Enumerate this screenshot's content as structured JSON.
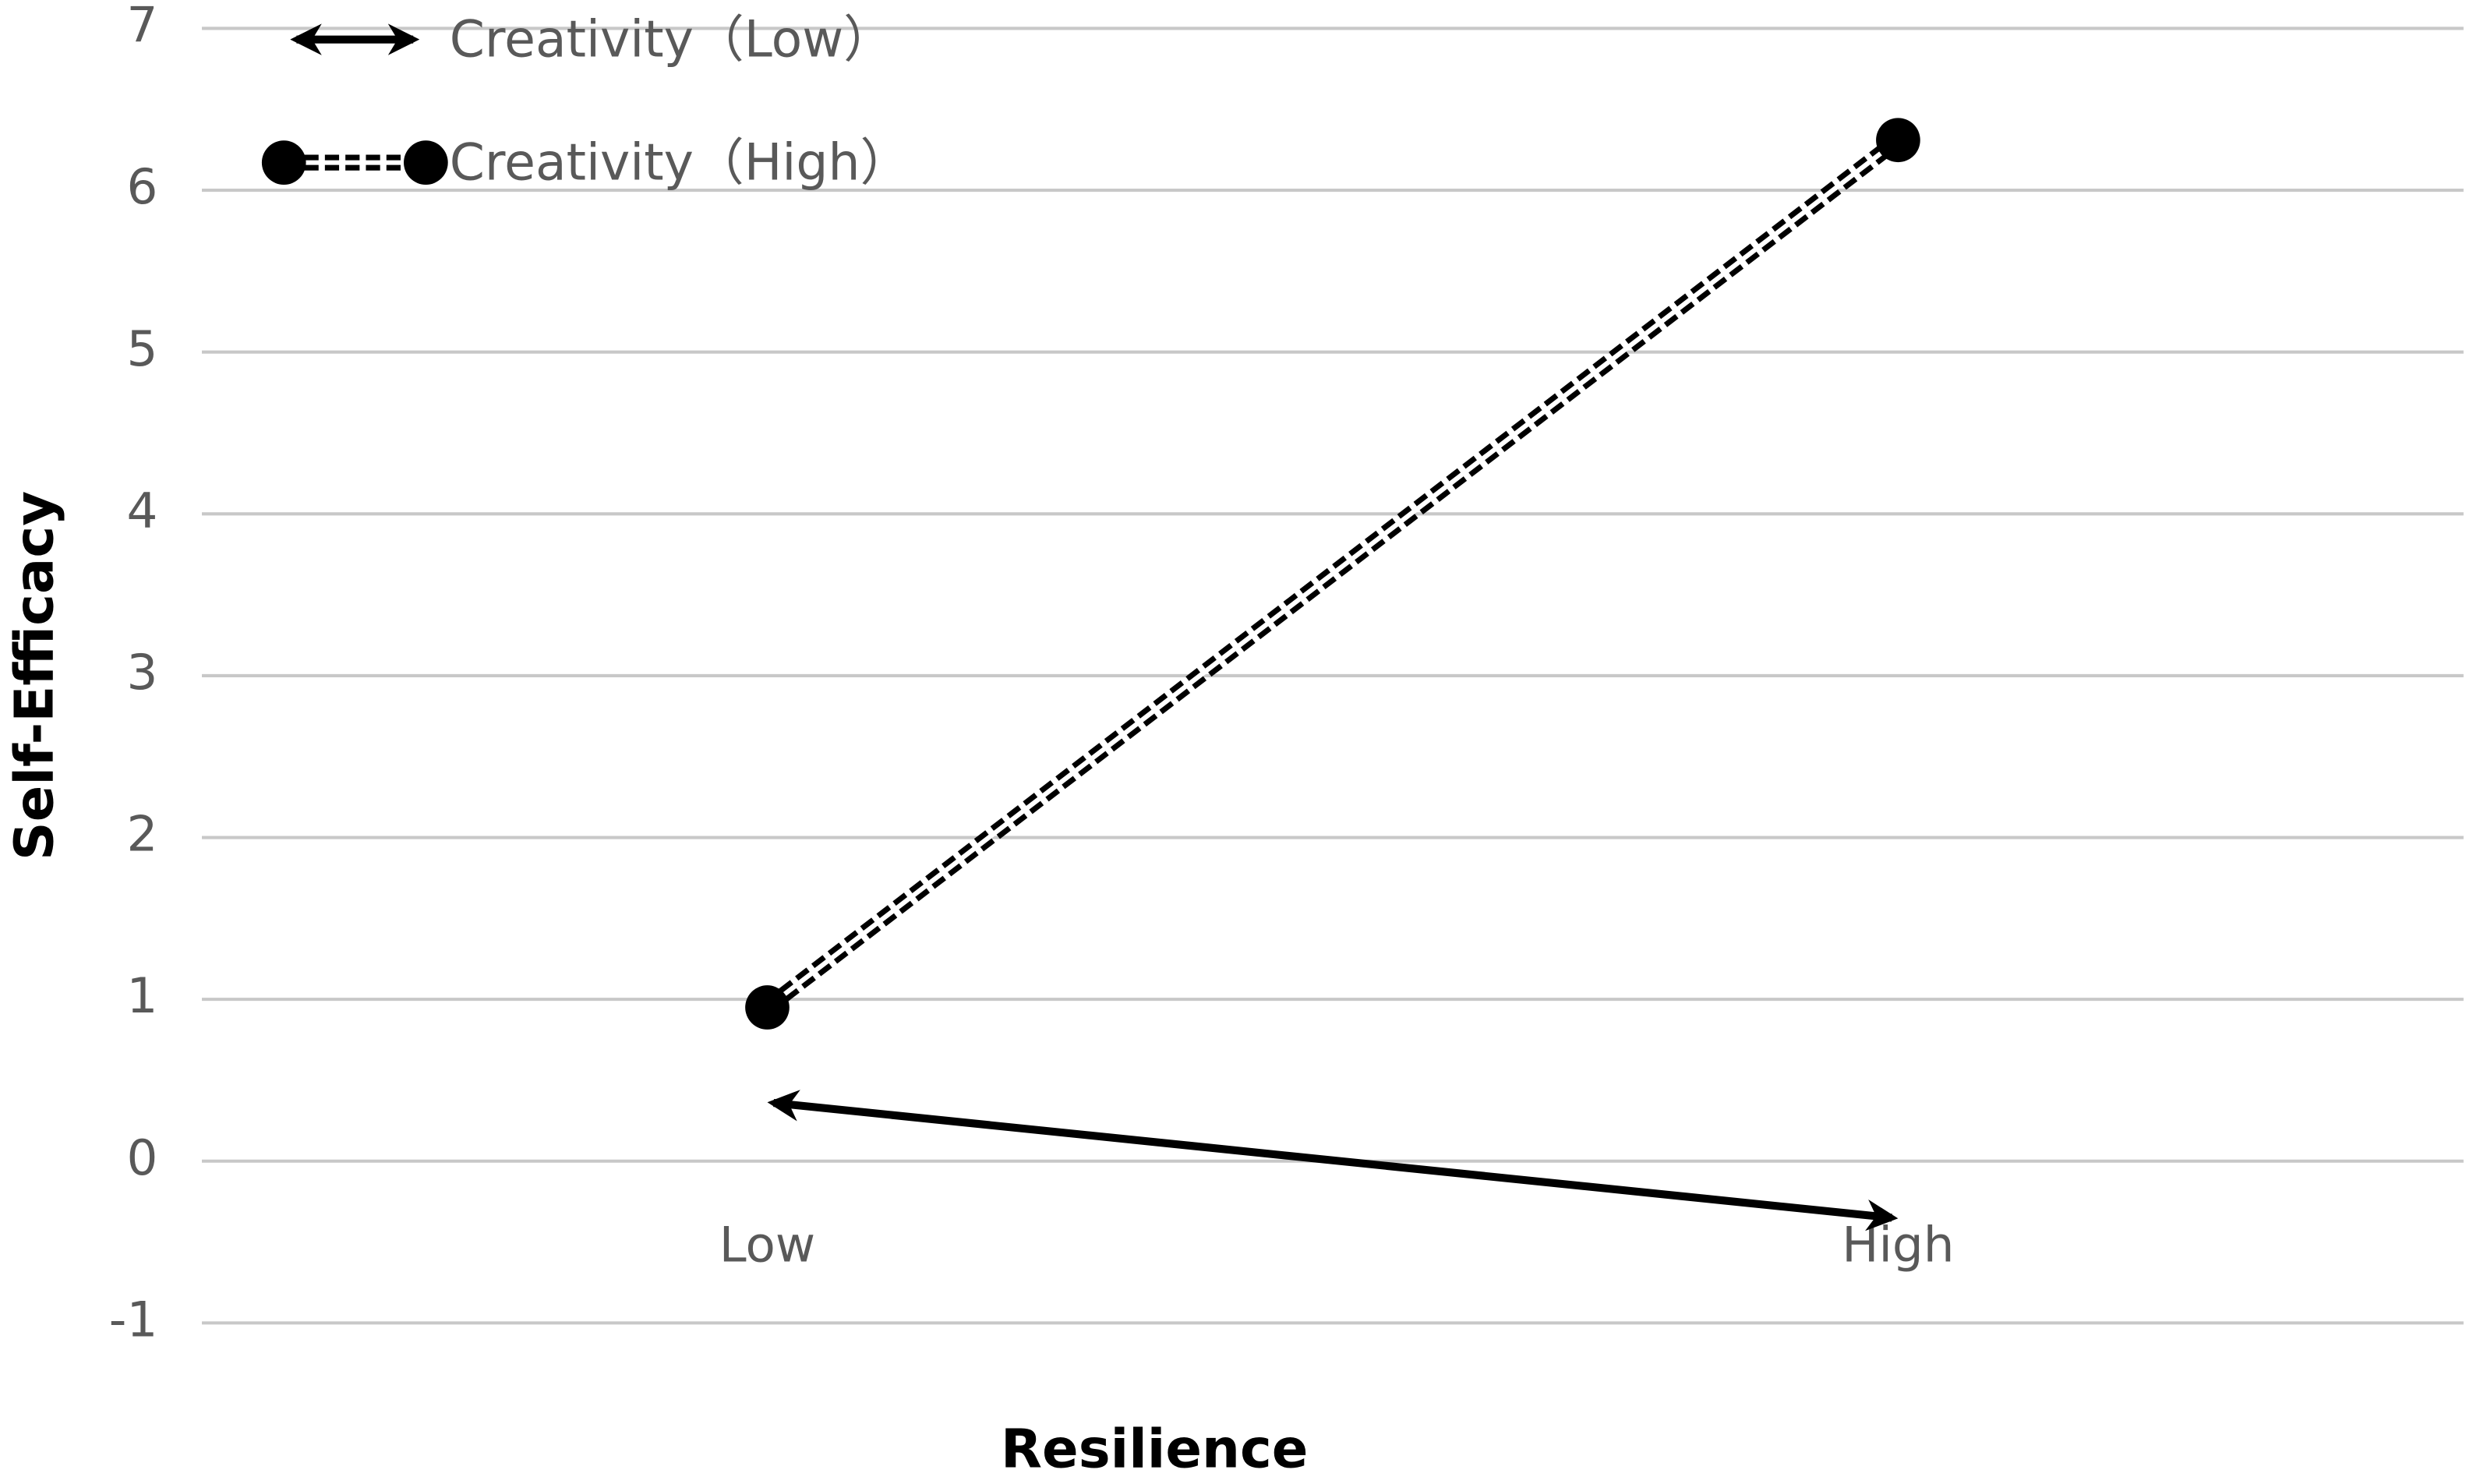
{
  "chart_data": {
    "type": "line",
    "x_label": "Resilience",
    "y_label": "Self-Efficacy",
    "categories": [
      "Low",
      "High"
    ],
    "series": [
      {
        "name": "Creativity（Low）",
        "color": "#000000",
        "marker": "arrow",
        "values": [
          0.36,
          -0.35
        ]
      },
      {
        "name": "Creativity（High）",
        "color": "#000000",
        "marker": "circle",
        "values": [
          0.95,
          6.31
        ]
      }
    ],
    "ylim": [
      -1,
      7
    ],
    "yticks": [
      -1,
      0,
      1,
      2,
      3,
      4,
      5,
      6,
      7
    ],
    "grid": true,
    "legend": "top-left"
  }
}
